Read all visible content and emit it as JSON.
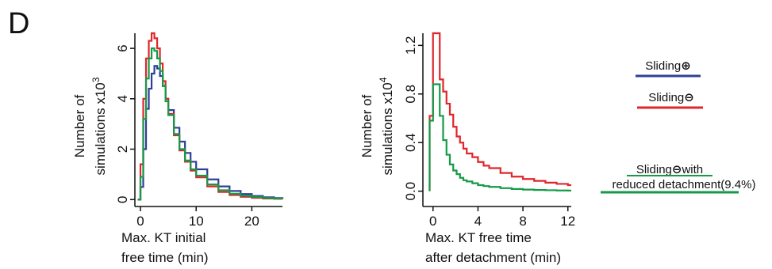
{
  "panel_label": "D",
  "colors": {
    "blue": "#2e3f97",
    "red": "#e0262a",
    "green": "#159a48"
  },
  "legend": {
    "items": [
      {
        "label": "Sliding",
        "symbol": "⊕",
        "color_key": "blue"
      },
      {
        "label": "Sliding",
        "symbol": "⊖",
        "color_key": "red"
      },
      {
        "label": "Sliding",
        "symbol": "⊖",
        "suffix": "with",
        "line2": "reduced detachment(9.4%)",
        "color_key": "green"
      }
    ]
  },
  "chart_data": [
    {
      "type": "line",
      "xlabel": [
        "Max. KT initial",
        "free time (min)"
      ],
      "ylabel": [
        "Number of",
        "simulations x10"
      ],
      "ylabel_exponent": "3",
      "xlim": [
        -1,
        25.5
      ],
      "ylim": [
        -0.15,
        6.6
      ],
      "xticks": [
        0,
        10,
        20
      ],
      "xtick_labels": [
        "0",
        "10",
        "20"
      ],
      "yticks": [
        0,
        2,
        4,
        6
      ],
      "ytick_labels": [
        "0",
        "2",
        "4",
        "6"
      ],
      "grid": false,
      "series": [
        {
          "color_key": "blue",
          "x": [
            -0.5,
            0,
            0.5,
            1,
            1.5,
            2,
            2.5,
            3,
            3.5,
            4,
            4.5,
            5,
            6,
            7,
            8,
            9,
            10,
            12,
            14,
            16,
            18,
            20,
            22,
            24,
            25.5
          ],
          "y": [
            0,
            0.5,
            2.0,
            3.6,
            4.4,
            5.0,
            5.3,
            5.2,
            4.9,
            4.5,
            4.0,
            3.55,
            2.85,
            2.3,
            1.85,
            1.5,
            1.2,
            0.8,
            0.52,
            0.34,
            0.22,
            0.14,
            0.09,
            0.06,
            0.04
          ]
        },
        {
          "color_key": "red",
          "x": [
            -0.5,
            0,
            0.5,
            1,
            1.5,
            2,
            2.5,
            3,
            3.5,
            4,
            4.5,
            5,
            6,
            7,
            8,
            9,
            10,
            12,
            14,
            16,
            18,
            20,
            22,
            24,
            25.5
          ],
          "y": [
            0,
            1.4,
            4.0,
            5.6,
            6.3,
            6.6,
            6.4,
            6.0,
            5.4,
            4.7,
            4.0,
            3.4,
            2.55,
            1.95,
            1.5,
            1.15,
            0.88,
            0.52,
            0.3,
            0.18,
            0.11,
            0.07,
            0.04,
            0.03,
            0.02
          ]
        },
        {
          "color_key": "green",
          "x": [
            -0.5,
            0,
            0.5,
            1,
            1.5,
            2,
            2.5,
            3,
            3.5,
            4,
            4.5,
            5,
            6,
            7,
            8,
            9,
            10,
            12,
            14,
            16,
            18,
            20,
            22,
            24,
            25.5
          ],
          "y": [
            0,
            0.9,
            3.2,
            4.8,
            5.6,
            6.0,
            5.9,
            5.6,
            5.1,
            4.5,
            3.9,
            3.35,
            2.6,
            2.0,
            1.55,
            1.2,
            0.95,
            0.6,
            0.37,
            0.23,
            0.15,
            0.1,
            0.06,
            0.04,
            0.03
          ]
        }
      ]
    },
    {
      "type": "line",
      "xlabel": [
        "Max. KT free time",
        "after detachment (min)"
      ],
      "ylabel": [
        "Number of",
        "simulations x10"
      ],
      "ylabel_exponent": "4",
      "xlim": [
        -0.9,
        12.3
      ],
      "ylim": [
        -0.1,
        1.3
      ],
      "xticks": [
        0,
        4,
        8,
        12
      ],
      "xtick_labels": [
        "0",
        "4",
        "8",
        "12"
      ],
      "yticks": [
        0.0,
        0.4,
        0.8,
        1.2
      ],
      "ytick_labels": [
        "0.0",
        "0.4",
        "0.8",
        "1.2"
      ],
      "grid": false,
      "series": [
        {
          "color_key": "red",
          "x": [
            -0.3,
            0,
            0.3,
            0.6,
            0.9,
            1.2,
            1.5,
            1.8,
            2.1,
            2.4,
            2.7,
            3,
            3.5,
            4,
            4.5,
            5,
            6,
            7,
            8,
            9,
            10,
            11,
            12
          ],
          "y": [
            0.62,
            1.3,
            1.3,
            0.92,
            0.82,
            0.72,
            0.63,
            0.53,
            0.45,
            0.4,
            0.35,
            0.31,
            0.28,
            0.24,
            0.21,
            0.19,
            0.15,
            0.12,
            0.1,
            0.085,
            0.07,
            0.06,
            0.05
          ]
        },
        {
          "color_key": "green",
          "x": [
            -0.3,
            0,
            0.3,
            0.6,
            0.9,
            1.2,
            1.5,
            1.8,
            2.1,
            2.4,
            2.7,
            3,
            3.5,
            4,
            4.5,
            5,
            6,
            7,
            8,
            9,
            10,
            11,
            12
          ],
          "y": [
            0.58,
            0.88,
            0.88,
            0.62,
            0.42,
            0.3,
            0.22,
            0.17,
            0.14,
            0.11,
            0.09,
            0.08,
            0.065,
            0.05,
            0.042,
            0.035,
            0.025,
            0.018,
            0.013,
            0.01,
            0.008,
            0.006,
            0.005
          ]
        }
      ]
    }
  ]
}
